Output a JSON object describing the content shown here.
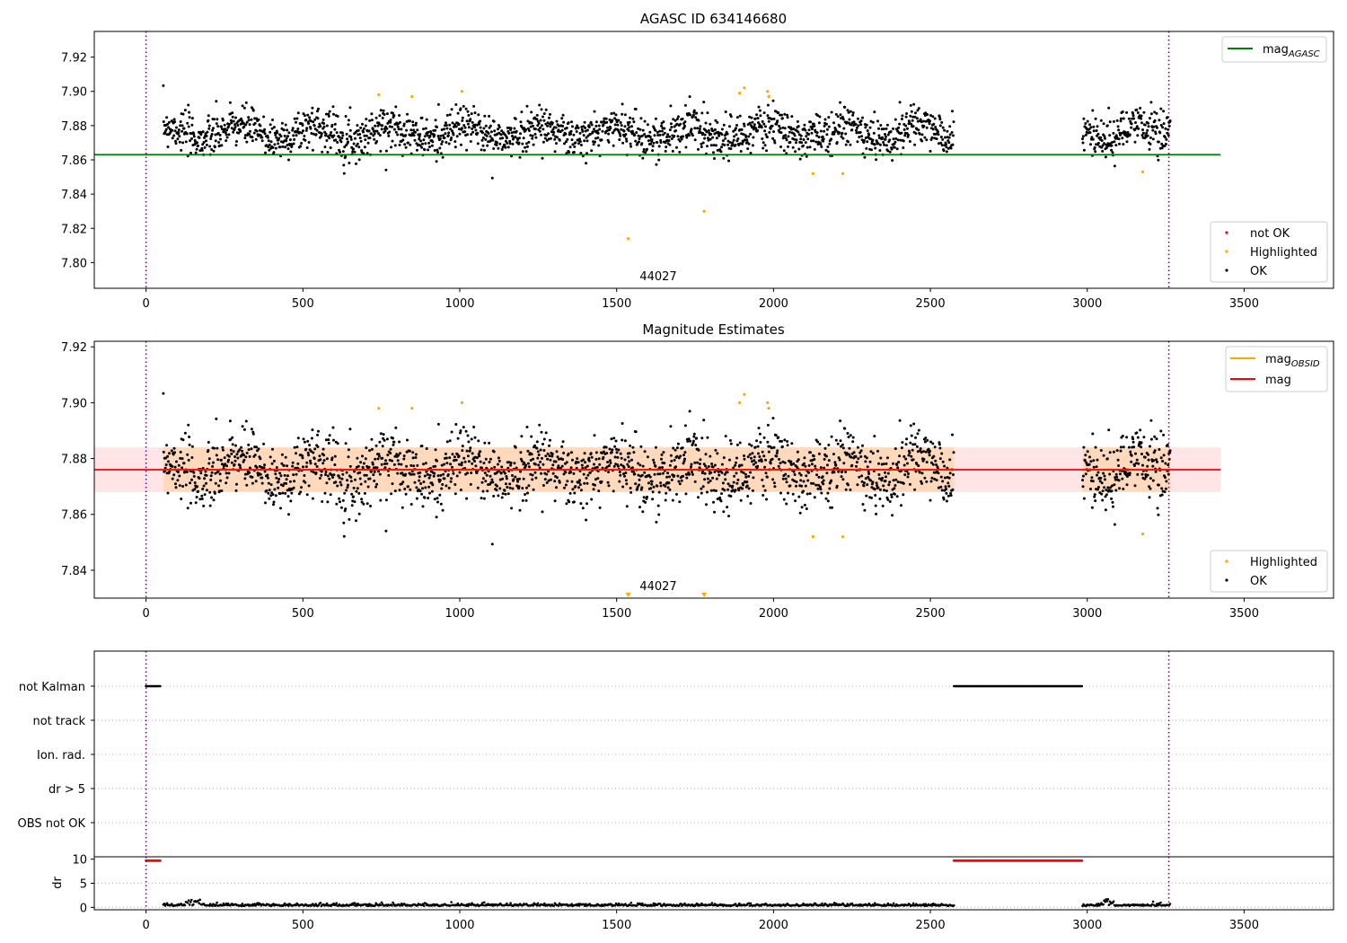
{
  "chart_data": [
    {
      "type": "scatter",
      "title": "AGASC ID 634146680",
      "xlim": [
        -165,
        3785
      ],
      "ylim": [
        7.785,
        7.935
      ],
      "x_ticks": [
        0,
        500,
        1000,
        1500,
        2000,
        2500,
        3000,
        3500
      ],
      "y_ticks": [
        7.8,
        7.82,
        7.84,
        7.86,
        7.88,
        7.9,
        7.92
      ],
      "grid": false,
      "obs_boundaries": [
        0,
        3260
      ],
      "obsid_label": "44027",
      "obsid_label_x": 1600,
      "segments": [
        [
          55,
          2575
        ],
        [
          2985,
          3265
        ]
      ],
      "point_model": {
        "baseline": 7.876,
        "sigma": 0.006,
        "period": 240,
        "amplitude": 0.004
      },
      "series": [
        {
          "name": "mag_AGASC",
          "kind": "hline",
          "y": 7.863,
          "x": [
            -165,
            3425
          ],
          "color": "#008000"
        }
      ],
      "highlighted_points": [
        [
          742,
          7.898
        ],
        [
          848,
          7.897
        ],
        [
          1007,
          7.9
        ],
        [
          1537,
          7.814
        ],
        [
          1779,
          7.83
        ],
        [
          1892,
          7.899
        ],
        [
          1907,
          7.902
        ],
        [
          1981,
          7.9
        ],
        [
          1985,
          7.897
        ],
        [
          2126,
          7.852
        ],
        [
          2221,
          7.852
        ],
        [
          3177,
          7.853
        ]
      ],
      "legend_lines": [
        {
          "label": "mag",
          "sub": "AGASC",
          "color": "#008000"
        }
      ],
      "legend_points": [
        {
          "label": "not OK",
          "color": "#ff0000"
        },
        {
          "label": "Highlighted",
          "color": "#ffa500"
        },
        {
          "label": "OK",
          "color": "#000000"
        }
      ]
    },
    {
      "type": "scatter",
      "title": "Magnitude Estimates",
      "xlim": [
        -165,
        3785
      ],
      "ylim": [
        7.83,
        7.922
      ],
      "x_ticks": [
        0,
        500,
        1000,
        1500,
        2000,
        2500,
        3000,
        3500
      ],
      "y_ticks": [
        7.84,
        7.86,
        7.88,
        7.9,
        7.92
      ],
      "grid": false,
      "obs_boundaries": [
        0,
        3260
      ],
      "obsid_label": "44027",
      "obsid_label_x": 1600,
      "series": [
        {
          "name": "mag_OBSID",
          "kind": "band",
          "x": [
            55,
            2575,
            2985,
            3265
          ],
          "y": 7.876,
          "range": [
            7.868,
            7.884
          ],
          "color": "#ffa500"
        },
        {
          "name": "mag",
          "kind": "band",
          "x": [
            -165,
            3425
          ],
          "y": 7.876,
          "range": [
            7.868,
            7.884
          ],
          "color": "#ff0000"
        }
      ],
      "highlighted_points": [
        [
          742,
          7.898
        ],
        [
          848,
          7.898
        ],
        [
          1007,
          7.9
        ],
        [
          1892,
          7.9
        ],
        [
          1907,
          7.903
        ],
        [
          1981,
          7.9
        ],
        [
          1985,
          7.898
        ],
        [
          2126,
          7.852
        ],
        [
          2221,
          7.852
        ],
        [
          3177,
          7.853
        ]
      ],
      "offscale_markers": [
        1537,
        1779
      ],
      "legend_lines": [
        {
          "label": "mag",
          "sub": "OBSID",
          "color": "#ffa500"
        },
        {
          "label": "mag",
          "sub": "",
          "color": "#ff0000"
        }
      ],
      "legend_points": [
        {
          "label": "Highlighted",
          "color": "#ffa500"
        },
        {
          "label": "OK",
          "color": "#000000"
        }
      ]
    },
    {
      "type": "scatter",
      "title": "",
      "xlim": [
        -165,
        3785
      ],
      "categories": [
        "not Kalman",
        "not track",
        "Ion. rad.",
        "dr > 5",
        "OBS not OK"
      ],
      "flag_series": [
        {
          "name": "not Kalman",
          "ranges": [
            [
              0,
              45
            ],
            [
              2575,
              2985
            ]
          ],
          "color": "#000000"
        }
      ],
      "grid": true,
      "obs_boundaries": [
        0,
        3260
      ]
    },
    {
      "type": "scatter",
      "title": "",
      "ylabel": "dr",
      "xlim": [
        -165,
        3785
      ],
      "ylim": [
        -0.5,
        10.5
      ],
      "x_ticks": [
        0,
        500,
        1000,
        1500,
        2000,
        2500,
        3000,
        3500
      ],
      "y_ticks": [
        0,
        5,
        10
      ],
      "grid": true,
      "obs_boundaries": [
        0,
        3260
      ],
      "capped_ranges": [
        [
          0,
          45
        ],
        [
          2575,
          2985
        ]
      ],
      "dr_model": {
        "baseline": 0.3,
        "noise": 0.25,
        "bumps": [
          [
            150,
            1.2
          ],
          [
            3060,
            1.0
          ]
        ]
      },
      "segments": [
        [
          55,
          2575
        ],
        [
          2985,
          3265
        ]
      ]
    }
  ]
}
